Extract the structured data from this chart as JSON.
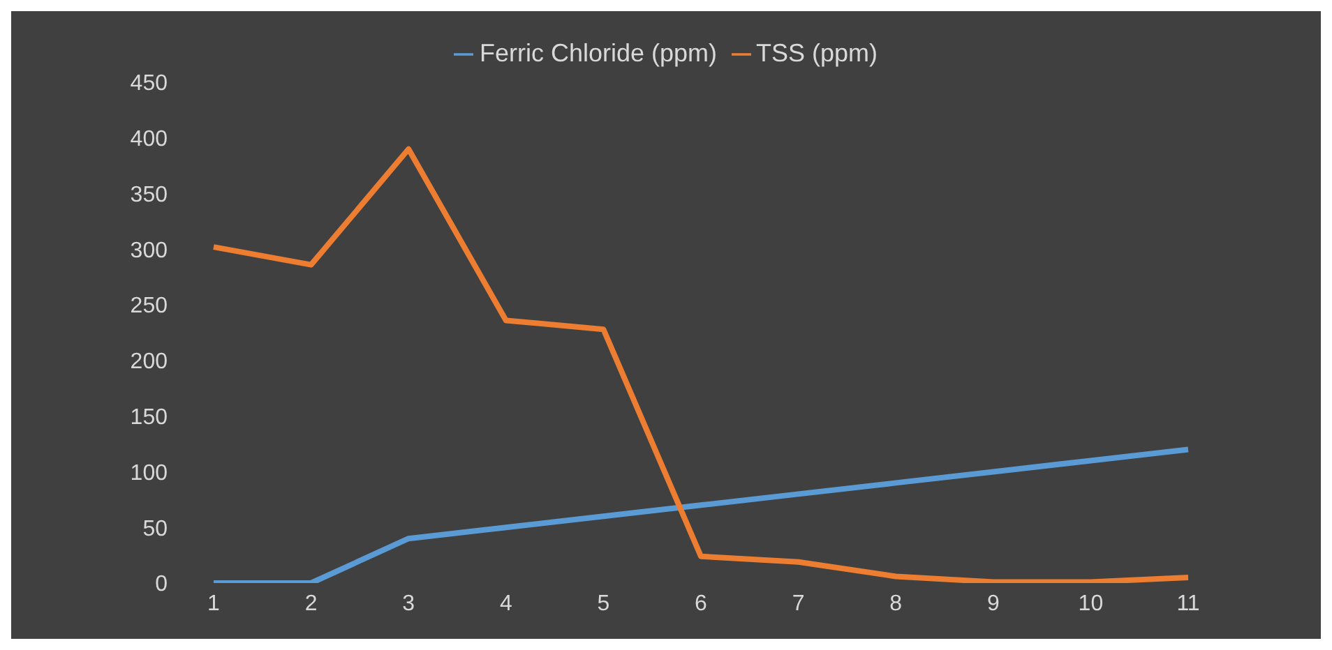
{
  "chart_data": {
    "type": "line",
    "categories": [
      "1",
      "2",
      "3",
      "4",
      "5",
      "6",
      "7",
      "8",
      "9",
      "10",
      "11"
    ],
    "series": [
      {
        "name": "Ferric Chloride  (ppm)",
        "color": "#5b9bd5",
        "values": [
          0,
          0,
          40,
          50,
          60,
          70,
          80,
          90,
          100,
          110,
          120
        ]
      },
      {
        "name": "TSS (ppm)",
        "color": "#ed7d31",
        "values": [
          302,
          286,
          390,
          236,
          228,
          24,
          19,
          6,
          1,
          1,
          5
        ]
      }
    ],
    "ylim": [
      0,
      450
    ],
    "yticks": [
      0,
      50,
      100,
      150,
      200,
      250,
      300,
      350,
      400,
      450
    ],
    "grid": false,
    "legend": "top",
    "marker": "none",
    "line_style": "solid"
  }
}
